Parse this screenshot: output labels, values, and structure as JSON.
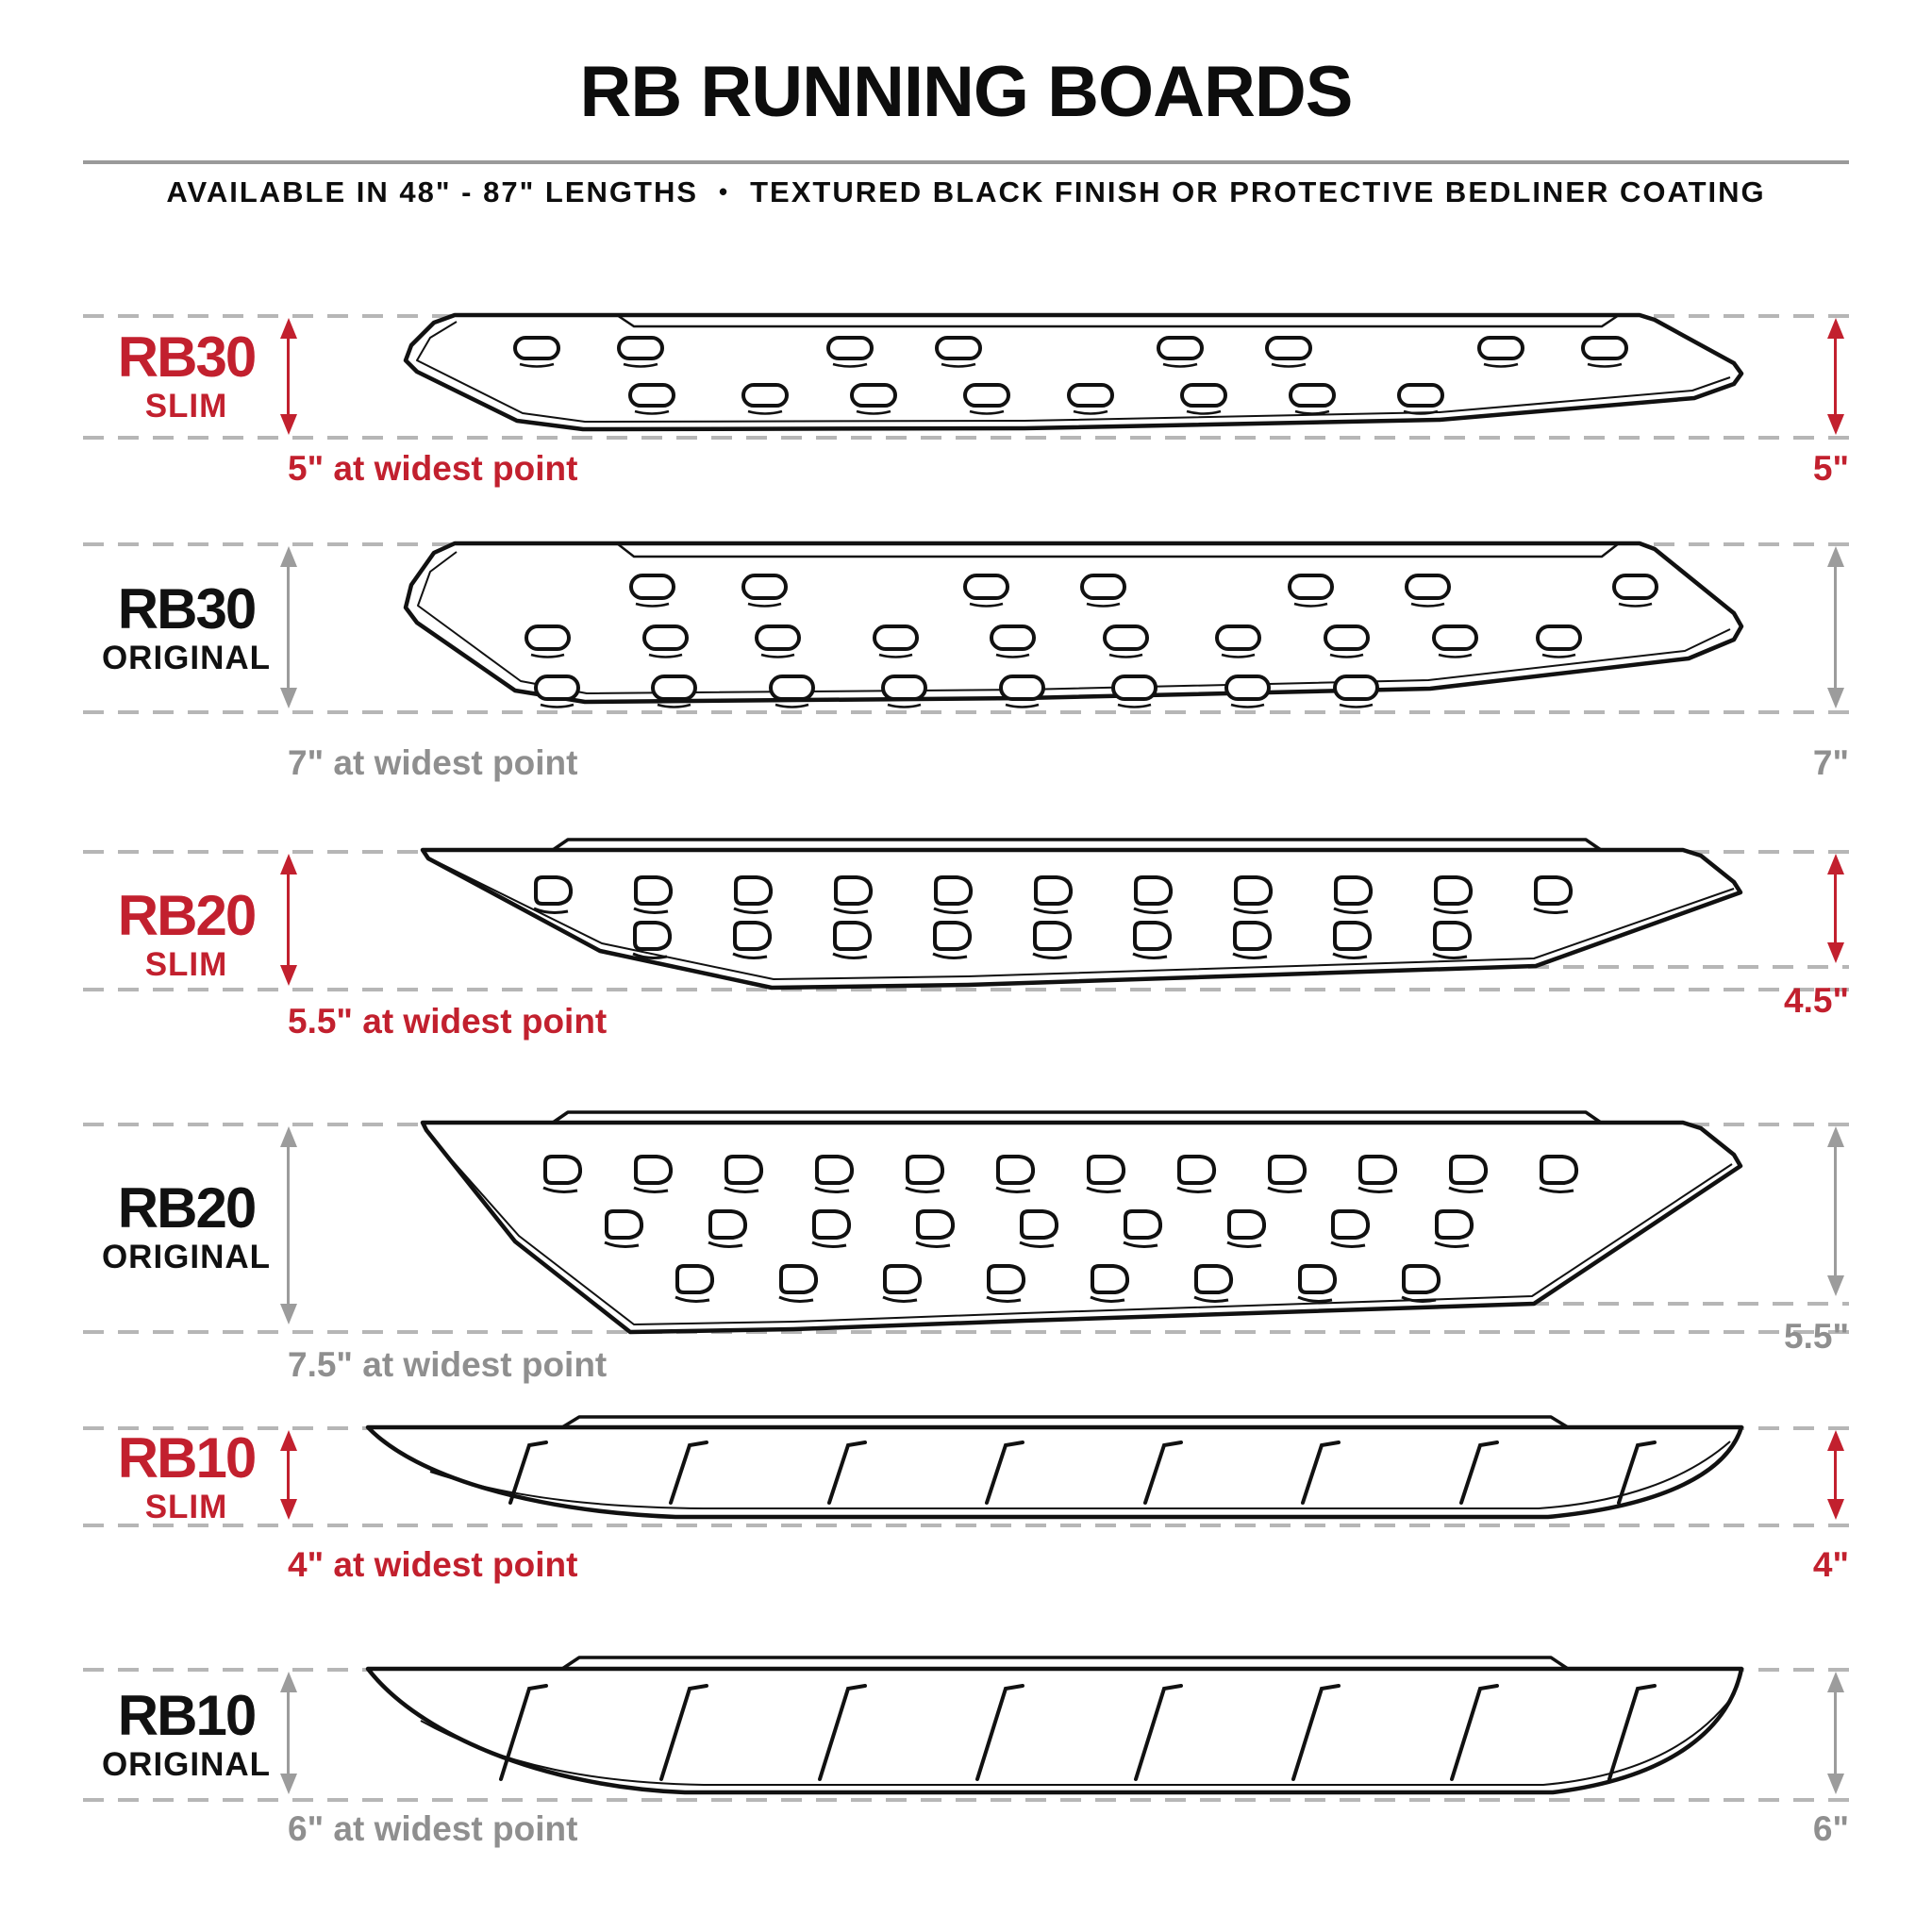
{
  "header": {
    "title": "RB RUNNING BOARDS",
    "subtitle_left": "AVAILABLE IN 48\" - 87\" LENGTHS",
    "bullet": "•",
    "subtitle_right": "TEXTURED BLACK FINISH OR PROTECTIVE BEDLINER COATING"
  },
  "theme": {
    "accent_red": "#C2202E",
    "gray_text": "#8F8F8F",
    "line_black": "#111111",
    "dash_gray": "#B6B6B6",
    "arrow_gray": "#9C9C9C"
  },
  "rows": [
    {
      "id": "rb30-slim",
      "model": "RB30",
      "variant": "SLIM",
      "note": "5\" at widest point",
      "dim": "5\""
    },
    {
      "id": "rb30-original",
      "model": "RB30",
      "variant": "ORIGINAL",
      "note": "7\" at widest point",
      "dim": "7\""
    },
    {
      "id": "rb20-slim",
      "model": "RB20",
      "variant": "SLIM",
      "note": "5.5\" at widest point",
      "dim": "4.5\""
    },
    {
      "id": "rb20-original",
      "model": "RB20",
      "variant": "ORIGINAL",
      "note": "7.5\" at widest point",
      "dim": "5.5\""
    },
    {
      "id": "rb10-slim",
      "model": "RB10",
      "variant": "SLIM",
      "note": "4\" at widest point",
      "dim": "4\""
    },
    {
      "id": "rb10-original",
      "model": "RB10",
      "variant": "ORIGINAL",
      "note": "6\" at widest point",
      "dim": "6\""
    }
  ]
}
